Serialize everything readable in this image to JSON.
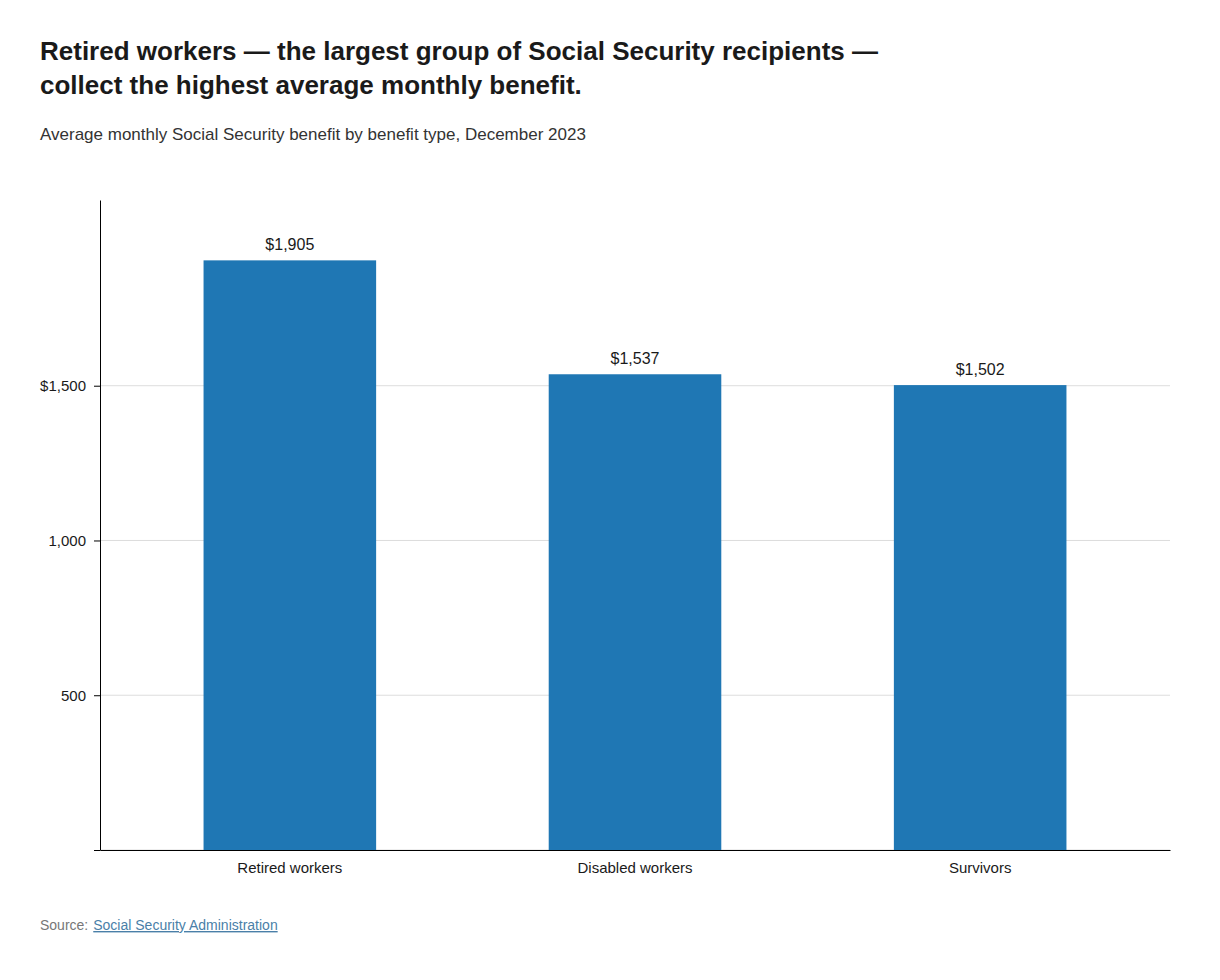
{
  "chart_data": {
    "type": "bar",
    "title": [
      "Retired workers — the largest group of Social Security recipients —",
      "collect the highest average monthly benefit."
    ],
    "subtitle": "Average monthly Social Security benefit by benefit type, December 2023",
    "categories": [
      "Retired workers",
      "Disabled workers",
      "Survivors"
    ],
    "values": [
      1905,
      1537,
      1502
    ],
    "value_labels": [
      "$1,905",
      "$1,537",
      "$1,502"
    ],
    "data_labels": true,
    "ylim": [
      0,
      2100
    ],
    "yticks": [
      {
        "value": 0,
        "label": null
      },
      500,
      {
        "value": 1000,
        "label": "1,000"
      },
      {
        "value": 1500,
        "label": "$1,500"
      }
    ],
    "grid": true,
    "source": [
      "Source:",
      "Social Security Administration"
    ]
  }
}
